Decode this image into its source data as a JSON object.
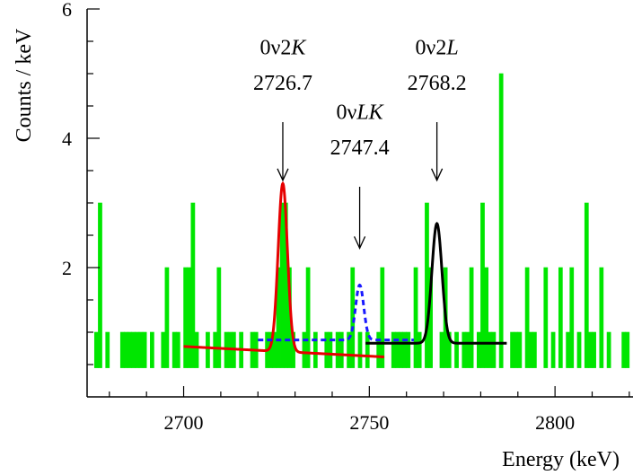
{
  "chart_data": {
    "type": "histogram",
    "xlabel": "Energy (keV)",
    "ylabel": "Counts / keV",
    "xlim": [
      2674,
      2821
    ],
    "ylim": [
      0,
      6
    ],
    "baseline": 0.45,
    "x_ticks": [
      2700,
      2750,
      2800
    ],
    "y_ticks": [
      2,
      4,
      6
    ],
    "bin_width": 1,
    "colors": {
      "histogram": "#00e600",
      "fit_0v2K": "#e60000",
      "fit_0vLK": "#1a1aff",
      "fit_0v2L": "#000000"
    },
    "bins": [
      {
        "x": 2676,
        "y": 1
      },
      {
        "x": 2677,
        "y": 3
      },
      {
        "x": 2679,
        "y": 1
      },
      {
        "x": 2683,
        "y": 1
      },
      {
        "x": 2684,
        "y": 1
      },
      {
        "x": 2685,
        "y": 1
      },
      {
        "x": 2686,
        "y": 1
      },
      {
        "x": 2687,
        "y": 1
      },
      {
        "x": 2688,
        "y": 1
      },
      {
        "x": 2689,
        "y": 1
      },
      {
        "x": 2691,
        "y": 1
      },
      {
        "x": 2694,
        "y": 1
      },
      {
        "x": 2695,
        "y": 2
      },
      {
        "x": 2697,
        "y": 1
      },
      {
        "x": 2698,
        "y": 1
      },
      {
        "x": 2700,
        "y": 2
      },
      {
        "x": 2701,
        "y": 2
      },
      {
        "x": 2702,
        "y": 3
      },
      {
        "x": 2703,
        "y": 1
      },
      {
        "x": 2706,
        "y": 1
      },
      {
        "x": 2708,
        "y": 1
      },
      {
        "x": 2709,
        "y": 2
      },
      {
        "x": 2711,
        "y": 1
      },
      {
        "x": 2712,
        "y": 1
      },
      {
        "x": 2713,
        "y": 1
      },
      {
        "x": 2715,
        "y": 1
      },
      {
        "x": 2718,
        "y": 1
      },
      {
        "x": 2719,
        "y": 1
      },
      {
        "x": 2722,
        "y": 1
      },
      {
        "x": 2723,
        "y": 1
      },
      {
        "x": 2724,
        "y": 1
      },
      {
        "x": 2725,
        "y": 2
      },
      {
        "x": 2726,
        "y": 3
      },
      {
        "x": 2727,
        "y": 3
      },
      {
        "x": 2728,
        "y": 2
      },
      {
        "x": 2729,
        "y": 1
      },
      {
        "x": 2732,
        "y": 1
      },
      {
        "x": 2733,
        "y": 2
      },
      {
        "x": 2735,
        "y": 1
      },
      {
        "x": 2738,
        "y": 1
      },
      {
        "x": 2739,
        "y": 1
      },
      {
        "x": 2741,
        "y": 1
      },
      {
        "x": 2742,
        "y": 1
      },
      {
        "x": 2744,
        "y": 1
      },
      {
        "x": 2745,
        "y": 2
      },
      {
        "x": 2747,
        "y": 1
      },
      {
        "x": 2749,
        "y": 1
      },
      {
        "x": 2752,
        "y": 1
      },
      {
        "x": 2753,
        "y": 2
      },
      {
        "x": 2756,
        "y": 1
      },
      {
        "x": 2757,
        "y": 1
      },
      {
        "x": 2758,
        "y": 1
      },
      {
        "x": 2759,
        "y": 1
      },
      {
        "x": 2760,
        "y": 1
      },
      {
        "x": 2762,
        "y": 2
      },
      {
        "x": 2763,
        "y": 1
      },
      {
        "x": 2765,
        "y": 3
      },
      {
        "x": 2766,
        "y": 2
      },
      {
        "x": 2769,
        "y": 1
      },
      {
        "x": 2770,
        "y": 2
      },
      {
        "x": 2771,
        "y": 1
      },
      {
        "x": 2773,
        "y": 1
      },
      {
        "x": 2775,
        "y": 1
      },
      {
        "x": 2776,
        "y": 1
      },
      {
        "x": 2777,
        "y": 2
      },
      {
        "x": 2779,
        "y": 1
      },
      {
        "x": 2780,
        "y": 3
      },
      {
        "x": 2781,
        "y": 2
      },
      {
        "x": 2782,
        "y": 1
      },
      {
        "x": 2783,
        "y": 1
      },
      {
        "x": 2785,
        "y": 5
      },
      {
        "x": 2788,
        "y": 1
      },
      {
        "x": 2789,
        "y": 1
      },
      {
        "x": 2790,
        "y": 1
      },
      {
        "x": 2792,
        "y": 2
      },
      {
        "x": 2793,
        "y": 1
      },
      {
        "x": 2794,
        "y": 1
      },
      {
        "x": 2797,
        "y": 2
      },
      {
        "x": 2799,
        "y": 1
      },
      {
        "x": 2801,
        "y": 2
      },
      {
        "x": 2803,
        "y": 1
      },
      {
        "x": 2804,
        "y": 2
      },
      {
        "x": 2806,
        "y": 1
      },
      {
        "x": 2808,
        "y": 3
      },
      {
        "x": 2809,
        "y": 1
      },
      {
        "x": 2810,
        "y": 1
      },
      {
        "x": 2812,
        "y": 2
      },
      {
        "x": 2814,
        "y": 1
      },
      {
        "x": 2818,
        "y": 1
      },
      {
        "x": 2819,
        "y": 1
      }
    ],
    "fits": [
      {
        "id": "0v2K",
        "style": "solid",
        "x_range": [
          2700,
          2754
        ],
        "mean": 2726.7,
        "sigma": 1.25,
        "amp": 2.6,
        "bg_start": 0.78,
        "bg_slope": -0.003,
        "color_key": "fit_0v2K"
      },
      {
        "id": "0vLK",
        "style": "dashed",
        "x_range": [
          2720,
          2762
        ],
        "mean": 2747.4,
        "sigma": 1.1,
        "amp": 0.85,
        "bg_start": 0.88,
        "bg_slope": 0.0,
        "color_key": "fit_0vLK"
      },
      {
        "id": "0v2L",
        "style": "solid",
        "x_range": [
          2749,
          2787
        ],
        "mean": 2768.2,
        "sigma": 1.35,
        "amp": 1.85,
        "bg_start": 0.83,
        "bg_slope": 0.0,
        "color_key": "fit_0v2L"
      }
    ],
    "annotations": [
      {
        "id": "ann-0v2K",
        "line1_prefix": "0ν2",
        "line1_ital": "K",
        "line2": "2726.7",
        "arrow_x": 2726.7,
        "arrow_from": 4.25,
        "arrow_to": 3.35,
        "label_y1": 5.3,
        "label_y2": 4.75
      },
      {
        "id": "ann-0vLK",
        "line1_prefix": "0ν",
        "line1_ital": "LK",
        "line2": "2747.4",
        "arrow_x": 2747.4,
        "arrow_from": 3.25,
        "arrow_to": 2.3,
        "label_y1": 4.3,
        "label_y2": 3.75
      },
      {
        "id": "ann-0v2L",
        "line1_prefix": "0ν2",
        "line1_ital": "L",
        "line2": "2768.2",
        "arrow_x": 2768.2,
        "arrow_from": 4.25,
        "arrow_to": 3.35,
        "label_y1": 5.3,
        "label_y2": 4.75
      }
    ]
  }
}
